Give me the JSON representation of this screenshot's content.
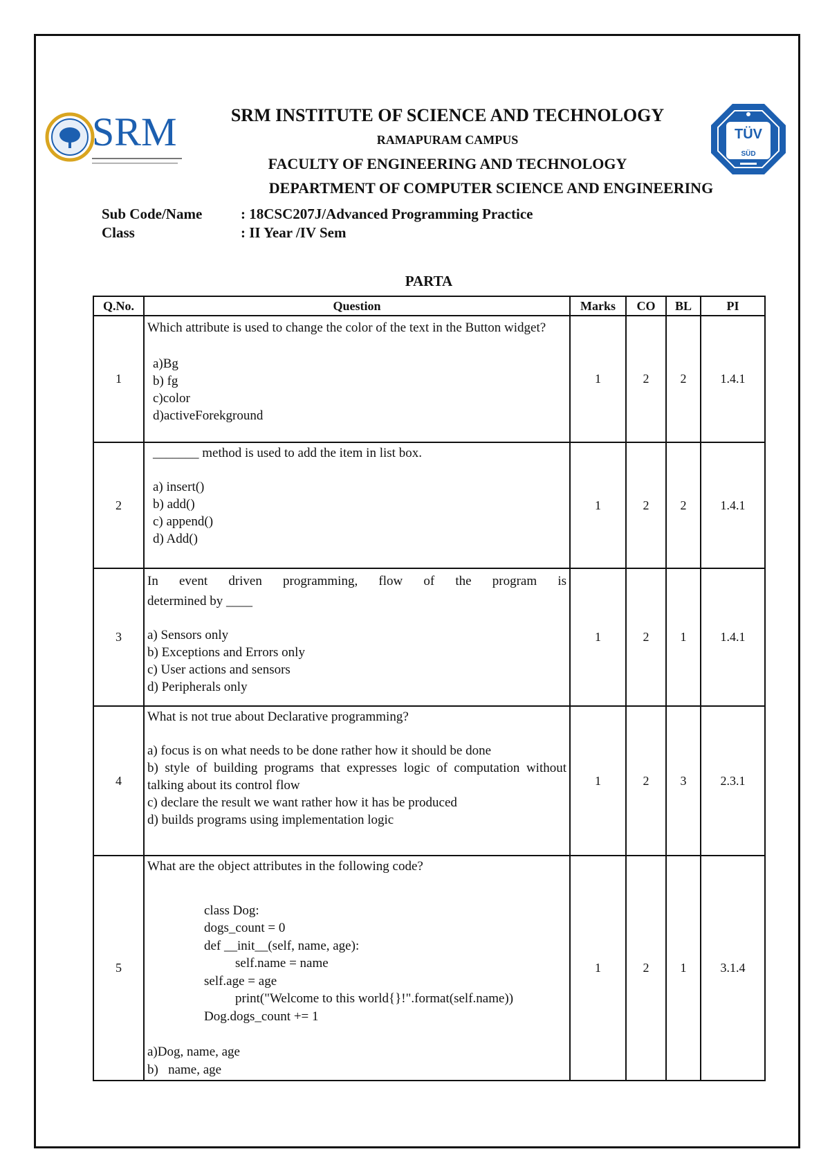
{
  "header": {
    "institute": "SRM INSTITUTE OF SCIENCE AND TECHNOLOGY",
    "campus": "RAMAPURAM CAMPUS",
    "faculty": "FACULTY OF ENGINEERING AND TECHNOLOGY",
    "department": "DEPARTMENT OF COMPUTER SCIENCE AND ENGINEERING",
    "logo_left_text": "SRM",
    "logo_right_text": "TÜV SÜD",
    "brand_color": "#1c5fb0"
  },
  "meta": {
    "sub_label": "Sub Code/Name",
    "sub_value": ": 18CSC207J/Advanced Programming Practice",
    "class_label": "Class",
    "class_value": ": II Year /IV Sem"
  },
  "part_title": "PARTA",
  "table": {
    "headers": [
      "Q.No.",
      "Question",
      "Marks",
      "CO",
      "BL",
      "PI"
    ],
    "rows": [
      {
        "qno": "1",
        "stem": "Which attribute is used to change the color of the text in the Button widget?",
        "options": [
          "a)Bg",
          "b) fg",
          "c)color",
          "d)activeForekground"
        ],
        "marks": "1",
        "co": "2",
        "bl": "2",
        "pi": "1.4.1"
      },
      {
        "qno": "2",
        "stem": "_______ method is used to add the item in list box.",
        "options": [
          "a) insert()",
          "b) add()",
          "c) append()",
          "d) Add()"
        ],
        "marks": "1",
        "co": "2",
        "bl": "2",
        "pi": "1.4.1"
      },
      {
        "qno": "3",
        "stem_line1": "In event driven programming, flow of the program is",
        "stem_line2": "determined by ____",
        "options": [
          "a) Sensors only",
          "b) Exceptions and Errors only",
          "c) User actions and sensors",
          "d) Peripherals only"
        ],
        "marks": "1",
        "co": "2",
        "bl": "1",
        "pi": "1.4.1"
      },
      {
        "qno": "4",
        "stem": "What is not true about Declarative programming?",
        "options": [
          "a) focus is on what needs to be done rather how it should be done",
          "b) style of building programs that expresses logic of computation without talking about its control flow",
          "c) declare the result we want rather how it has be produced",
          "d) builds programs using implementation logic"
        ],
        "marks": "1",
        "co": "2",
        "bl": "3",
        "pi": "2.3.1"
      },
      {
        "qno": "5",
        "stem": "What are the object attributes in the following code?",
        "code": [
          "class Dog:",
          "dogs_count = 0",
          "def __init__(self, name, age):",
          "self.name = name",
          "self.age = age",
          "print(\"Welcome to this world{}!\".format(self.name))",
          "Dog.dogs_count += 1"
        ],
        "options": [
          "a)Dog, name, age",
          "b)   name, age"
        ],
        "marks": "1",
        "co": "2",
        "bl": "1",
        "pi": "3.1.4"
      }
    ]
  }
}
